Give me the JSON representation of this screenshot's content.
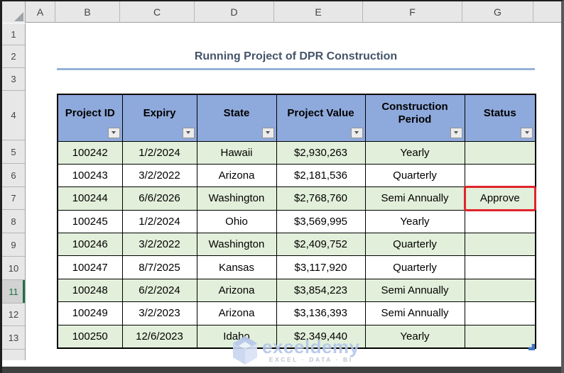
{
  "sheet": {
    "column_headers": [
      "A",
      "B",
      "C",
      "D",
      "E",
      "F",
      "G"
    ],
    "row_headers": [
      "1",
      "2",
      "3",
      "4",
      "5",
      "6",
      "7",
      "8",
      "9",
      "10",
      "11",
      "12",
      "13"
    ],
    "active_row": "11"
  },
  "title": "Running Project of DPR Construction",
  "table": {
    "headers": [
      "Project ID",
      "Expiry",
      "State",
      "Project Value",
      "Construction Period",
      "Status"
    ],
    "rows": [
      [
        "100242",
        "1/2/2024",
        "Hawaii",
        "$2,930,263",
        "Yearly",
        ""
      ],
      [
        "100243",
        "3/2/2022",
        "Arizona",
        "$2,181,536",
        "Quarterly",
        ""
      ],
      [
        "100244",
        "6/6/2026",
        "Washington",
        "$2,768,760",
        "Semi Annually",
        "Approve"
      ],
      [
        "100245",
        "1/2/2024",
        "Ohio",
        "$3,569,995",
        "Yearly",
        ""
      ],
      [
        "100246",
        "3/2/2022",
        "Washington",
        "$2,409,752",
        "Quarterly",
        ""
      ],
      [
        "100247",
        "8/7/2025",
        "Kansas",
        "$3,117,920",
        "Quarterly",
        ""
      ],
      [
        "100248",
        "6/2/2024",
        "Arizona",
        "$3,854,223",
        "Semi Annually",
        ""
      ],
      [
        "100249",
        "3/2/2023",
        "Arizona",
        "$3,136,393",
        "Semi Annually",
        ""
      ],
      [
        "100250",
        "12/6/2023",
        "Idaho",
        "$2,349,440",
        "Yearly",
        ""
      ]
    ],
    "highlighted_cell": {
      "row_index": 2,
      "col_index": 5,
      "value": "Approve"
    }
  },
  "watermark": {
    "brand": "exceldemy",
    "tagline": "EXCEL · DATA · BI"
  },
  "colors": {
    "header_fill": "#8EA9DB",
    "banded_row_fill": "#E2EFDA",
    "highlight_border": "#E0242B",
    "title_text": "#44546A",
    "title_underline": "#95B3D7",
    "active_row_accent": "#1E7145",
    "table_resize_handle": "#4472C4",
    "gridline": "#000000"
  }
}
